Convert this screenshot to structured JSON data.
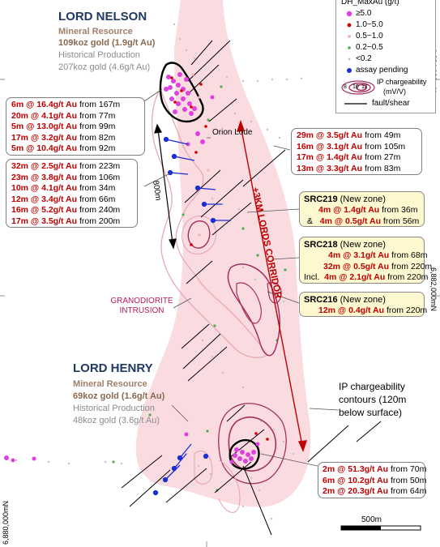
{
  "lord_nelson": {
    "title": "LORD NELSON",
    "resource_label": "Mineral Resource",
    "resource_value": "109koz gold (1.9g/t Au)",
    "historical_label": "Historical Production",
    "historical_value": "207koz gold (4.6g/t Au)"
  },
  "lord_henry": {
    "title": "LORD HENRY",
    "resource_label": "Mineral Resource",
    "resource_value": "69koz gold (1.6g/t Au)",
    "historical_label": "Historical Production",
    "historical_value": "48koz gold (3.6g/t Au)"
  },
  "intercepts_nelson_a": [
    {
      "grade": "6m   @ 16.4g/t Au",
      "from": "from 167m"
    },
    {
      "grade": "20m  @  4.1g/t Au",
      "from": "from  77m"
    },
    {
      "grade": "5m   @ 13.0g/t Au",
      "from": "from  99m"
    },
    {
      "grade": "17m  @  3.2g/t Au",
      "from": "from  82m"
    },
    {
      "grade": "5m   @ 10.4g/t Au",
      "from": "from  92m"
    }
  ],
  "intercepts_nelson_b": [
    {
      "grade": "32m @ 2.5g/t Au",
      "from": "from 223m"
    },
    {
      "grade": "23m @ 3.8g/t Au",
      "from": "from 106m"
    },
    {
      "grade": "10m @ 4.1g/t Au",
      "from": "from  34m"
    },
    {
      "grade": "12m @ 3.4g/t Au",
      "from": "from  66m"
    },
    {
      "grade": "16m @ 5.2g/t Au",
      "from": "from 240m"
    },
    {
      "grade": "17m @ 3.5g/t Au",
      "from": "from 200m"
    }
  ],
  "intercepts_orion": [
    {
      "grade": "29m @ 3.5g/t Au",
      "from": "from 49m"
    },
    {
      "grade": "16m @ 3.1g/t Au",
      "from": "from 105m"
    },
    {
      "grade": "17m @ 1.4g/t Au",
      "from": "from 27m"
    },
    {
      "grade": "13m @ 3.3g/t Au",
      "from": "from 83m"
    }
  ],
  "src219": {
    "hole": "SRC219",
    "note": "(New zone)",
    "rows": [
      {
        "prefix": "",
        "grade": "4m @ 1.4g/t Au",
        "from": "from  36m"
      },
      {
        "prefix": "&",
        "grade": "4m @ 0.5g/t Au",
        "from": "from 56m"
      }
    ]
  },
  "src218": {
    "hole": "SRC218",
    "note": "(New zone)",
    "rows": [
      {
        "prefix": "",
        "grade": "4m @ 3.1g/t Au",
        "from": "from   68m"
      },
      {
        "prefix": "",
        "grade": "32m @ 0.5g/t Au",
        "from": "from 220m"
      },
      {
        "prefix": "Incl.",
        "grade": "4m @ 2.1g/t Au",
        "from": "from 220m"
      }
    ]
  },
  "src216": {
    "hole": "SRC216",
    "note": "(New zone)",
    "rows": [
      {
        "prefix": "",
        "grade": "12m @ 0.4g/t Au",
        "from": "from 220m"
      }
    ]
  },
  "intercepts_henry": [
    {
      "grade": "2m @  51.3g/t Au",
      "from": "from 70m"
    },
    {
      "grade": "6m @  10.2g/t Au",
      "from": "from 50m"
    },
    {
      "grade": "2m @ 20.3g/t Au",
      "from": "from 64m"
    }
  ],
  "labels": {
    "orion_lode": "Orion Lode",
    "distance": "800m",
    "corridor": "+3KM LORDS CORRIDOR",
    "granodiorite_1": "GRANODIORITE",
    "granodiorite_2": "INTRUSION",
    "ip_1": "IP chargeability",
    "ip_2": "contours (120m",
    "ip_3": "below surface)",
    "scale": "500m"
  },
  "legend": {
    "title": "DH_MaxAu (g/t)",
    "items": [
      {
        "label": "≥5.0",
        "color": "#e040e0"
      },
      {
        "label": "1.0~5.0",
        "color": "#d40000"
      },
      {
        "label": "0.5~1.0",
        "color": "#f2b8b8"
      },
      {
        "label": "0.2~0.5",
        "color": "#4caf50"
      },
      {
        "label": "<0.2",
        "color": "#bdbdbd"
      },
      {
        "label": "assay pending",
        "color": "#1a2fd4"
      }
    ],
    "ip_label": "IP chargeability",
    "ip_unit": "(mV/V)",
    "ip_values": [
      "8",
      "10",
      "12"
    ],
    "fault_label": "fault/shear"
  },
  "coords": {
    "n1": "6,884,000mN",
    "n2": "6,882,000mN",
    "n3": "6,880,000mN"
  },
  "colors": {
    "corridor": "#f9d5da",
    "heading": "#1f3864",
    "intercept": "#c00000",
    "high_grade": "#e040e0",
    "ip_contour": "#a3305e"
  }
}
